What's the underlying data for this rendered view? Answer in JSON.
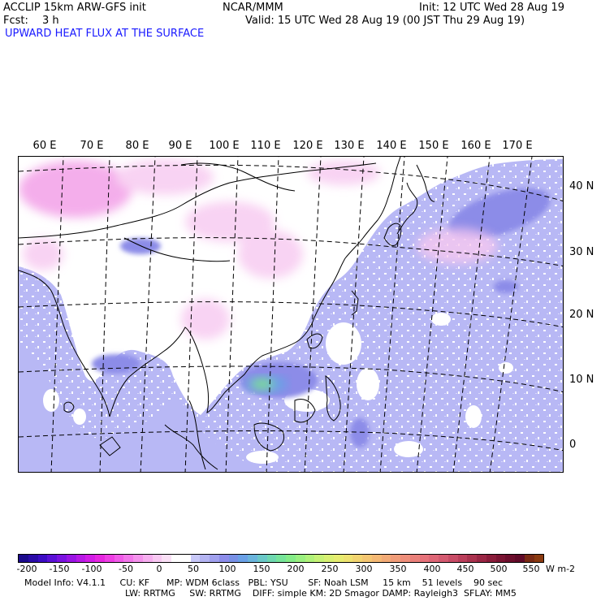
{
  "header": {
    "title": "ACCLIP 15km ARW-GFS init",
    "fcst_label": "Fcst:",
    "fcst_value": "3 h",
    "center": "NCAR/MMM",
    "init": "Init: 12 UTC Wed 28 Aug 19",
    "valid": "Valid: 15 UTC Wed 28 Aug 19 (00 JST Thu 29 Aug 19)",
    "field": "UPWARD HEAT FLUX AT THE SURFACE"
  },
  "map": {
    "longitude_labels": [
      "60 E",
      "70 E",
      "80 E",
      "90 E",
      "100 E",
      "110 E",
      "120 E",
      "130 E",
      "140 E",
      "150 E",
      "160 E",
      "170 E"
    ],
    "latitude_labels": [
      "40 N",
      "30 N",
      "20 N",
      "10 N",
      "0"
    ],
    "colors": {
      "negative_light": "#f7c8f0",
      "negative_mid": "#f29ae6",
      "positive_low": "#b8b8f5",
      "positive_mid": "#8c8ce8",
      "positive_high": "#6f8fe0",
      "green_core": "#7fe07f",
      "ocean_no_shade": "#ffffff"
    }
  },
  "colorbar": {
    "tick_labels": [
      "-200",
      "-150",
      "-100",
      "-50",
      "0",
      "50",
      "100",
      "150",
      "200",
      "250",
      "300",
      "350",
      "400",
      "450",
      "500",
      "550"
    ],
    "unit": "W m-2",
    "colors": [
      "#1b0a8c",
      "#2a0ba8",
      "#3c0cc4",
      "#5a10d6",
      "#7a12e0",
      "#9a14e4",
      "#b818e6",
      "#d21ce6",
      "#e626e0",
      "#ee3ee4",
      "#f05ae8",
      "#f276ea",
      "#f492ec",
      "#f6aeef",
      "#f8c8f2",
      "#fae0f6",
      "#ffffff",
      "#ffffff",
      "#c8c8f8",
      "#b4b4f2",
      "#a0a0ee",
      "#8c8cea",
      "#7890e6",
      "#6aa0e6",
      "#6ab4dc",
      "#6ac8c8",
      "#6ed8b0",
      "#76e49a",
      "#84ec88",
      "#9af080",
      "#b0f27a",
      "#c6f276",
      "#d8f072",
      "#e6ec70",
      "#eee270",
      "#f2d470",
      "#f4c672",
      "#f4b874",
      "#f2aa76",
      "#f09c78",
      "#ee8e7a",
      "#ea807a",
      "#e6727a",
      "#de6676",
      "#d45a70",
      "#c84c66",
      "#ba3e5a",
      "#aa324e",
      "#9a2644",
      "#8a1c3a",
      "#7a1432",
      "#6c0e2c",
      "#600a28",
      "#7a2a14",
      "#8a3a10"
    ]
  },
  "footer": {
    "line1": "Model Info: V4.1.1     CU: KF      MP: WDM 6class   PBL: YSU       SF: Noah LSM     15 km    51 levels    90 sec",
    "line2": "LW: RRTMG     SW: RRTMG    DIFF: simple KM: 2D Smagor DAMP: Rayleigh3  SFLAY: MM5"
  }
}
